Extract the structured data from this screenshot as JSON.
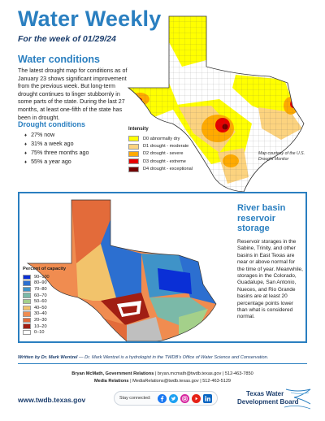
{
  "header": {
    "title": "Water Weekly",
    "subtitle": "For the week of 01/29/24"
  },
  "conditions": {
    "heading": "Water conditions",
    "body": "The latest drought map for conditions as of January 23 shows significant improvement from the previous week. But long-term drought continues to linger stubbornly in some parts of the state. During the last 27 months, at least one-fifth of the state has been in drought."
  },
  "drought_conditions": {
    "heading": "Drought conditions",
    "items": [
      "27% now",
      "31% a week ago",
      "75% three months ago",
      "55% a year ago"
    ]
  },
  "drought_map": {
    "credit": "Map courtesy of the U.S. Drought Monitor",
    "legend_title": "Intensity",
    "legend": [
      {
        "label": "D0  abnormally dry",
        "color": "#ffff00"
      },
      {
        "label": "D1  drought - moderate",
        "color": "#fcd37f"
      },
      {
        "label": "D2  drought - severe",
        "color": "#ffaa00"
      },
      {
        "label": "D3  drought - extreme",
        "color": "#e60000"
      },
      {
        "label": "D4  drought - exceptional",
        "color": "#730000"
      }
    ]
  },
  "reservoirs": {
    "heading": "River basin reservoir storage",
    "body": "Reservoir storages in the Sabine, Trinity, and other basins in East Texas are near or above normal for the time of year. Meanwhile, storages in the Colorado, Guadalupe, San Antonio, Nueces, and Rio Grande basins are at least 20 percentage points lower than what is considered normal.",
    "legend_title": "Percent of capacity",
    "legend": [
      {
        "label": "90–100",
        "color": "#0a2fd6"
      },
      {
        "label": "80–90",
        "color": "#2c6fd0"
      },
      {
        "label": "70–80",
        "color": "#3f93c8"
      },
      {
        "label": "60–70",
        "color": "#7bb9a8"
      },
      {
        "label": "50–60",
        "color": "#a4d08a"
      },
      {
        "label": "40–50",
        "color": "#f2c36b"
      },
      {
        "label": "30–40",
        "color": "#f08c50"
      },
      {
        "label": "20–30",
        "color": "#e36b3a"
      },
      {
        "label": "10–20",
        "color": "#a11e13"
      },
      {
        "label": "0–10",
        "color": "#ffffff"
      }
    ]
  },
  "footer": {
    "written_by": "Written by Dr. Mark Wentzel",
    "written_rest": " — Dr. Mark Wentzel is a hydrologist in the TWDB’s Office of Water Science and Conservation.",
    "contact1_name": "Bryan McMath, Government Relations",
    "contact1_rest": "  |  bryan.mcmath@twdb.texas.gov  |  512-463-7850",
    "contact2_name": "Media Relations",
    "contact2_rest": "  |  MediaRelations@twdb.texas.gov  |  512-463-5129",
    "url": "www.twdb.texas.gov",
    "stay_connected": "Stay connected:",
    "social_icons": [
      "facebook-icon",
      "twitter-icon",
      "instagram-icon",
      "youtube-icon",
      "linkedin-icon"
    ],
    "logo_line1": "Texas Water",
    "logo_line2": "Development Board"
  }
}
